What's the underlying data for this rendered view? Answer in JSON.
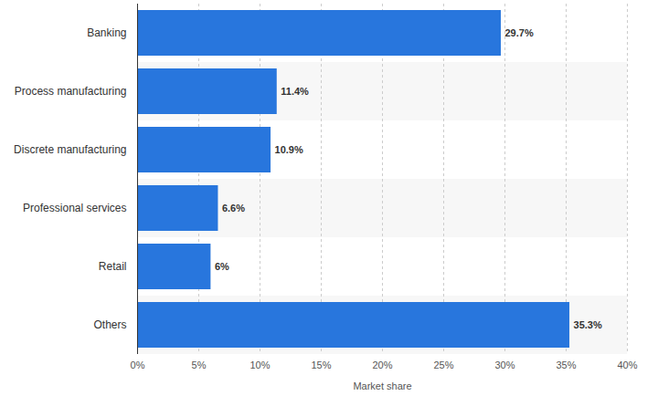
{
  "chart_data": {
    "type": "bar",
    "orientation": "horizontal",
    "categories": [
      "Banking",
      "Process manufacturing",
      "Discrete manufacturing",
      "Professional services",
      "Retail",
      "Others"
    ],
    "values": [
      29.7,
      11.4,
      10.9,
      6.6,
      6,
      35.3
    ],
    "value_labels": [
      "29.7%",
      "11.4%",
      "10.9%",
      "6.6%",
      "6%",
      "35.3%"
    ],
    "data_labels": true,
    "color": "#2876dd",
    "x_label": "Market share",
    "xlim": [
      0,
      40
    ],
    "xticks": [
      {
        "value": 0,
        "label": "0%"
      },
      {
        "value": 5,
        "label": "5%"
      },
      {
        "value": 10,
        "label": "10%"
      },
      {
        "value": 15,
        "label": "15%"
      },
      {
        "value": 20,
        "label": "20%"
      },
      {
        "value": 25,
        "label": "25%"
      },
      {
        "value": 30,
        "label": "30%"
      },
      {
        "value": 35,
        "label": "35%"
      },
      {
        "value": 40,
        "label": "40%"
      }
    ],
    "grid": true
  }
}
